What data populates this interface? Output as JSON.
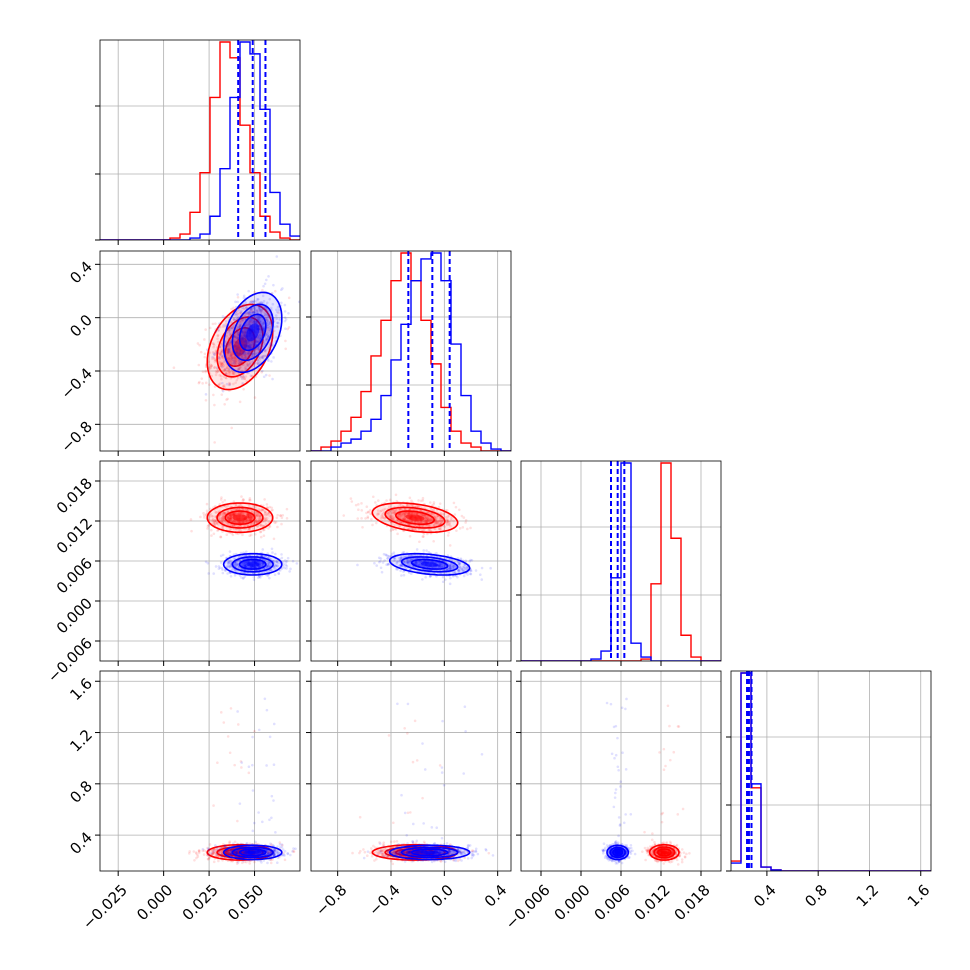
{
  "colors": {
    "red": "#ff0000",
    "blue": "#0000ff",
    "grid": "#b0b0b0",
    "axis": "#000000"
  },
  "chart_data": {
    "type": "corner",
    "description_of_panels": "4x4 lower-triangular corner plot; diagonal = 1D step histograms, off-diagonal = 2D scatter + density contours",
    "grid": true,
    "parameters": [
      {
        "id": "p0",
        "range": [
          -0.035,
          0.075
        ],
        "ticks": [
          -0.025,
          0.0,
          0.025,
          0.05
        ],
        "tick_labels": [
          "−0.025",
          "0.000",
          "0.025",
          "0.050"
        ]
      },
      {
        "id": "p1",
        "range": [
          -1.0,
          0.5
        ],
        "ticks": [
          -0.8,
          -0.4,
          0.0,
          0.4
        ],
        "tick_labels": [
          "−0.8",
          "−0.4",
          "0.0",
          "0.4"
        ]
      },
      {
        "id": "p2",
        "range": [
          -0.009,
          0.021
        ],
        "ticks": [
          -0.006,
          0.0,
          0.006,
          0.012,
          0.018
        ],
        "tick_labels": [
          "−0.006",
          "0.000",
          "0.006",
          "0.012",
          "0.018"
        ]
      },
      {
        "id": "p3",
        "range": [
          0.12,
          1.68
        ],
        "ticks": [
          0.4,
          0.8,
          1.2,
          1.6
        ],
        "tick_labels": [
          "0.4",
          "0.8",
          "1.2",
          "1.6"
        ]
      }
    ],
    "series": [
      {
        "color": "red",
        "mean": [
          0.042,
          -0.22,
          0.0125,
          0.265
        ],
        "sd": [
          0.009,
          0.16,
          0.0011,
          0.03
        ],
        "hist": [
          {
            "edges": [
              -0.035,
              -0.0295,
              -0.024,
              -0.0185,
              -0.013,
              -0.0075,
              -0.002,
              0.0035,
              0.009,
              0.0145,
              0.02,
              0.0255,
              0.031,
              0.0365,
              0.042,
              0.0475,
              0.053,
              0.0585,
              0.064,
              0.0695,
              0.075
            ],
            "heights": [
              0,
              0,
              0,
              0,
              0,
              0,
              0,
              0.01,
              0.03,
              0.14,
              0.34,
              0.72,
              1.0,
              0.92,
              0.58,
              0.34,
              0.12,
              0.04,
              0.01,
              0
            ]
          },
          {
            "edges": [
              -1.0,
              -0.925,
              -0.85,
              -0.775,
              -0.7,
              -0.625,
              -0.55,
              -0.475,
              -0.4,
              -0.325,
              -0.25,
              -0.175,
              -0.1,
              -0.025,
              0.05,
              0.125,
              0.2,
              0.275,
              0.35,
              0.425,
              0.5
            ],
            "heights": [
              0,
              0.02,
              0.05,
              0.1,
              0.17,
              0.3,
              0.48,
              0.66,
              0.86,
              1.0,
              0.86,
              0.66,
              0.44,
              0.22,
              0.1,
              0.04,
              0.02,
              0,
              0,
              0
            ]
          },
          {
            "edges": [
              -0.009,
              -0.0075,
              -0.006,
              -0.0045,
              -0.003,
              -0.0015,
              0.0,
              0.0015,
              0.003,
              0.0045,
              0.006,
              0.0075,
              0.009,
              0.0105,
              0.012,
              0.0135,
              0.015,
              0.0165,
              0.018,
              0.0195,
              0.021
            ],
            "heights": [
              0,
              0,
              0,
              0,
              0,
              0,
              0,
              0,
              0,
              0,
              0,
              0,
              0.01,
              0.39,
              1.0,
              0.62,
              0.13,
              0.02,
              0,
              0
            ]
          },
          {
            "edges": [
              0.12,
              0.198,
              0.276,
              0.354,
              0.432,
              0.51,
              0.588,
              0.666,
              0.744,
              0.822,
              0.9,
              0.978,
              1.056,
              1.134,
              1.212,
              1.29,
              1.368,
              1.446,
              1.524,
              1.602,
              1.68
            ],
            "heights": [
              0.05,
              1.0,
              0.42,
              0.02,
              0.005,
              0,
              0,
              0,
              0,
              0,
              0,
              0,
              0,
              0,
              0,
              0,
              0,
              0,
              0,
              0
            ]
          }
        ]
      },
      {
        "color": "blue",
        "mean": [
          0.049,
          -0.11,
          0.0055,
          0.265
        ],
        "sd": [
          0.008,
          0.15,
          0.0008,
          0.028
        ],
        "quantiles": [
          [
            0.041,
            0.049,
            0.056
          ],
          [
            -0.27,
            -0.09,
            0.04
          ],
          [
            0.0045,
            0.0055,
            0.0065
          ],
          [
            0.245,
            0.26,
            0.28
          ]
        ],
        "hist": [
          {
            "edges": [
              -0.035,
              -0.0295,
              -0.024,
              -0.0185,
              -0.013,
              -0.0075,
              -0.002,
              0.0035,
              0.009,
              0.0145,
              0.02,
              0.0255,
              0.031,
              0.0365,
              0.042,
              0.0475,
              0.053,
              0.0585,
              0.064,
              0.0695,
              0.075
            ],
            "heights": [
              0,
              0,
              0,
              0,
              0,
              0,
              0,
              0,
              0,
              0.01,
              0.03,
              0.12,
              0.36,
              0.72,
              1.0,
              0.94,
              0.66,
              0.24,
              0.08,
              0.02
            ]
          },
          {
            "edges": [
              -1.0,
              -0.925,
              -0.85,
              -0.775,
              -0.7,
              -0.625,
              -0.55,
              -0.475,
              -0.4,
              -0.325,
              -0.25,
              -0.175,
              -0.1,
              -0.025,
              0.05,
              0.125,
              0.2,
              0.275,
              0.35,
              0.425,
              0.5
            ],
            "heights": [
              0,
              0,
              0.02,
              0.04,
              0.06,
              0.1,
              0.16,
              0.28,
              0.46,
              0.64,
              0.86,
              0.97,
              1.0,
              0.86,
              0.54,
              0.28,
              0.1,
              0.04,
              0.01,
              0
            ]
          },
          {
            "edges": [
              -0.009,
              -0.0075,
              -0.006,
              -0.0045,
              -0.003,
              -0.0015,
              0.0,
              0.0015,
              0.003,
              0.0045,
              0.006,
              0.0075,
              0.009,
              0.0105,
              0.012,
              0.0135,
              0.015,
              0.0165,
              0.018,
              0.0195,
              0.021
            ],
            "heights": [
              0,
              0,
              0,
              0,
              0,
              0,
              0,
              0.01,
              0.05,
              0.42,
              1.0,
              0.09,
              0.02,
              0,
              0,
              0,
              0,
              0,
              0,
              0
            ]
          },
          {
            "edges": [
              0.12,
              0.198,
              0.276,
              0.354,
              0.432,
              0.51,
              0.588,
              0.666,
              0.744,
              0.822,
              0.9,
              0.978,
              1.056,
              1.134,
              1.212,
              1.29,
              1.368,
              1.446,
              1.524,
              1.602,
              1.68
            ],
            "heights": [
              0.04,
              1.0,
              0.44,
              0.02,
              0.005,
              0,
              0,
              0,
              0,
              0,
              0,
              0,
              0,
              0,
              0,
              0,
              0,
              0,
              0,
              0
            ]
          }
        ]
      }
    ]
  }
}
